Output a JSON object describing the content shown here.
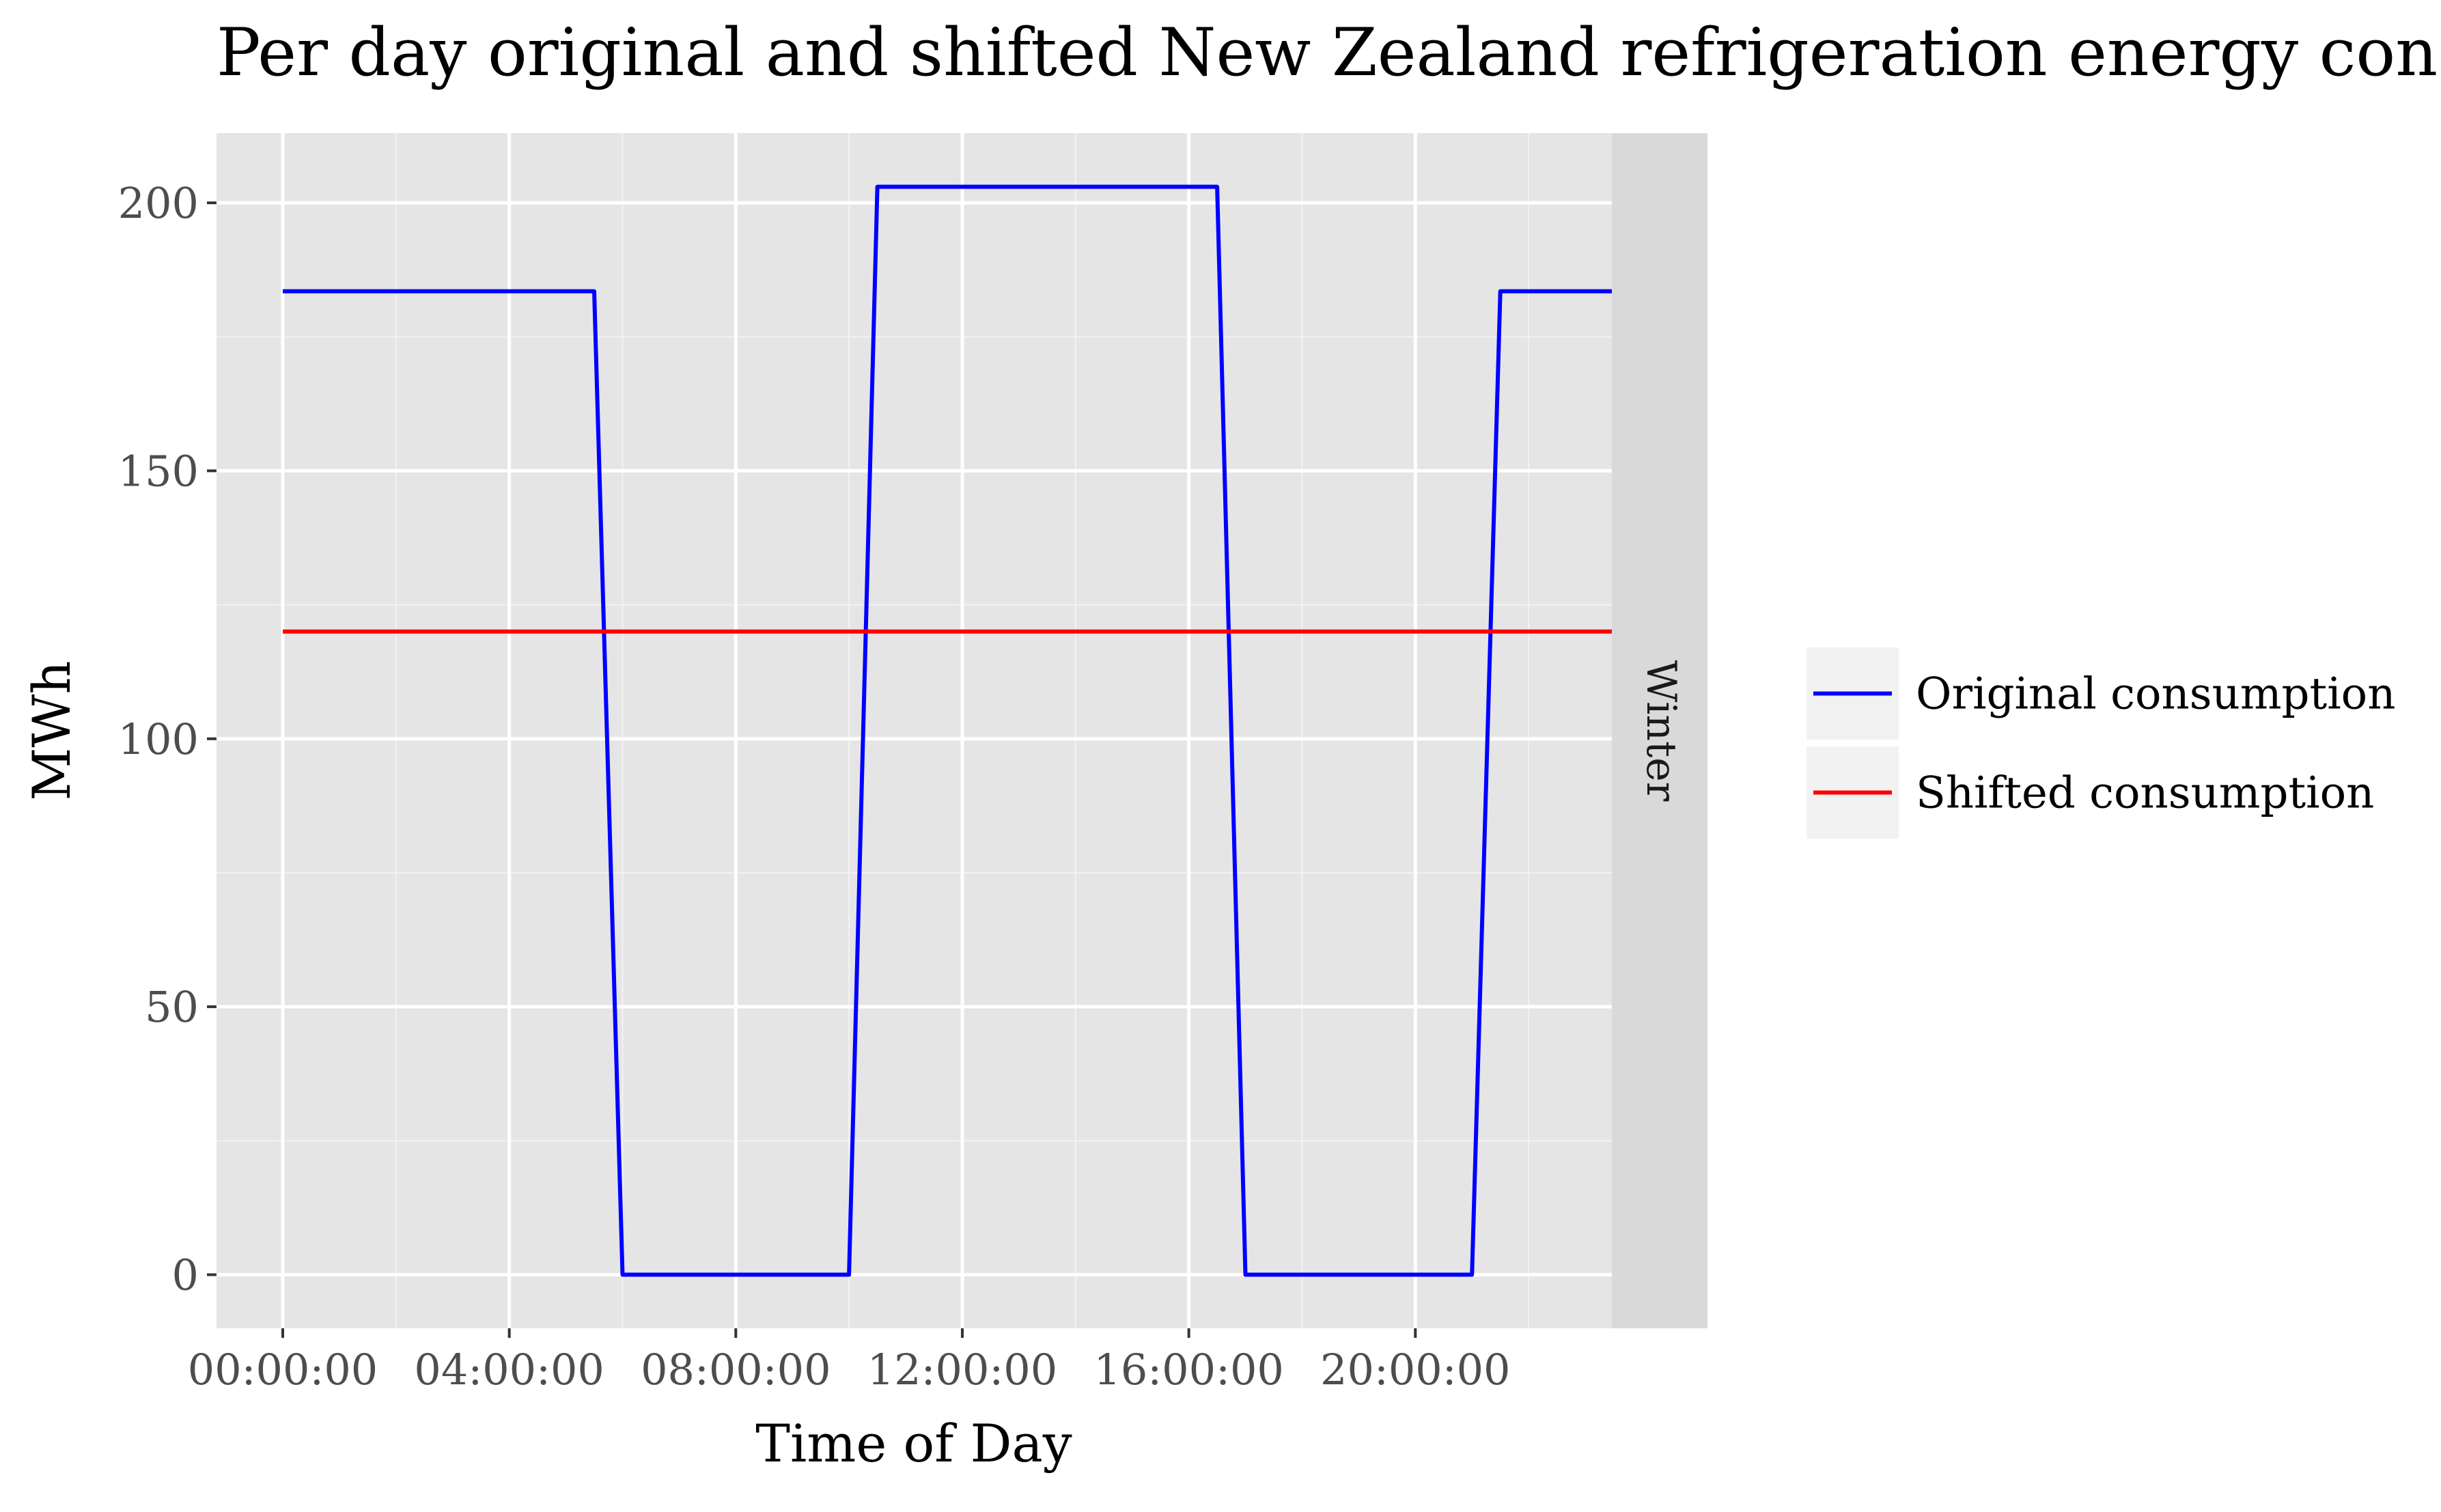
{
  "chart_data": {
    "type": "line",
    "title": "Per day original and shifted New Zealand refrigeration energy consumption",
    "xlabel": "Time of Day",
    "ylabel": "MWh",
    "facet_label": "Winter",
    "x_ticks": [
      "00:00:00",
      "04:00:00",
      "08:00:00",
      "12:00:00",
      "16:00:00",
      "20:00:00"
    ],
    "x_tick_hours": [
      0,
      4,
      8,
      12,
      16,
      20
    ],
    "xlim_hours": [
      -1.17,
      23.47
    ],
    "y_ticks": [
      "0",
      "50",
      "100",
      "150",
      "200"
    ],
    "y_tick_values": [
      0,
      50,
      100,
      150,
      200
    ],
    "ylim": [
      -10,
      213
    ],
    "grid": true,
    "legend_position": "right",
    "series": [
      {
        "name": "Original consumption",
        "color": "#0000ff",
        "x_hours": [
          0,
          5.5,
          6.0,
          10.0,
          10.5,
          16.5,
          17.0,
          21.0,
          21.5,
          23.5
        ],
        "values": [
          183.5,
          183.5,
          0,
          0,
          203,
          203,
          0,
          0,
          183.5,
          183.5
        ]
      },
      {
        "name": "Shifted consumption",
        "color": "#ff0000",
        "x_hours": [
          0,
          23.5
        ],
        "values": [
          120,
          120
        ]
      }
    ]
  }
}
